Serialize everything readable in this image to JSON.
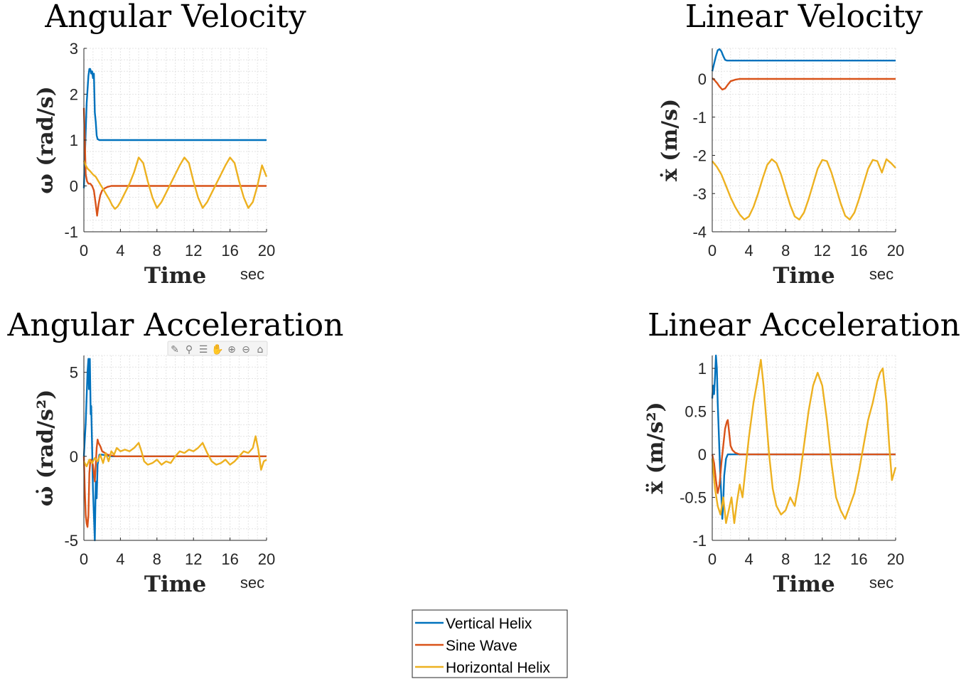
{
  "figure": {
    "colors": {
      "vertical_helix": "#0072BD",
      "sine_wave": "#D95319",
      "horizontal_helix": "#EDB120",
      "grid": "#e4e4e4",
      "axis": "#262626"
    },
    "legend": {
      "placement": "bottom-center",
      "entries": [
        "Vertical Helix",
        "Sine Wave",
        "Horizontal Helix"
      ]
    },
    "toolbar": {
      "icons": [
        "brush-icon",
        "data-tips-icon",
        "legend-icon",
        "pan-hand-icon",
        "zoom-in-icon",
        "zoom-out-icon",
        "home-icon"
      ]
    }
  },
  "chart_data": [
    {
      "type": "line",
      "title": "Angular Velocity",
      "xlabel": "Time",
      "xunit": "sec",
      "ylabel": "ω (rad/s)",
      "xlim": [
        0,
        20
      ],
      "ylim": [
        -1,
        3
      ],
      "xticks": [
        "0",
        "4",
        "8",
        "12",
        "16",
        "20"
      ],
      "yticks": [
        "-1",
        "0",
        "1",
        "2",
        "3"
      ],
      "grid": true,
      "series": [
        {
          "name": "Vertical Helix",
          "x": [
            0,
            0.1,
            0.3,
            0.5,
            0.6,
            0.7,
            0.8,
            0.9,
            1.0,
            1.1,
            1.2,
            1.3,
            1.4,
            1.5,
            1.7,
            2.0,
            20
          ],
          "y": [
            -0.05,
            0.6,
            1.8,
            2.4,
            2.55,
            2.55,
            2.45,
            2.5,
            2.35,
            2.45,
            1.6,
            1.4,
            1.1,
            1.02,
            1.0,
            1.0,
            1.0
          ]
        },
        {
          "name": "Sine Wave",
          "x": [
            0,
            0.1,
            0.2,
            0.35,
            0.5,
            0.7,
            0.9,
            1.1,
            1.3,
            1.45,
            1.6,
            1.8,
            2.0,
            2.3,
            2.6,
            3.0,
            3.5,
            4.0,
            20
          ],
          "y": [
            1.7,
            1.0,
            0.25,
            0.1,
            0.05,
            0.05,
            0.0,
            -0.1,
            -0.4,
            -0.65,
            -0.4,
            -0.2,
            -0.1,
            -0.05,
            -0.02,
            0.0,
            0.0,
            0.0,
            0.0
          ]
        },
        {
          "name": "Horizontal Helix",
          "x": [
            0,
            0.2,
            0.4,
            0.7,
            1.0,
            1.3,
            1.6,
            1.9,
            2.2,
            2.5,
            2.8,
            3.1,
            3.4,
            3.7,
            4.0,
            4.5,
            5.0,
            5.5,
            6.0,
            6.5,
            7.0,
            7.5,
            8.0,
            8.5,
            9.0,
            9.5,
            10.0,
            10.5,
            11.0,
            11.5,
            12.0,
            12.5,
            13.0,
            13.5,
            14.0,
            14.5,
            15.0,
            15.5,
            16.0,
            16.5,
            17.0,
            17.5,
            18.0,
            18.5,
            19.0,
            19.5,
            20.0
          ],
          "y": [
            0.55,
            0.45,
            0.38,
            0.32,
            0.25,
            0.2,
            0.1,
            0.0,
            -0.1,
            -0.2,
            -0.3,
            -0.42,
            -0.5,
            -0.45,
            -0.35,
            -0.15,
            0.05,
            0.3,
            0.62,
            0.5,
            0.1,
            -0.25,
            -0.48,
            -0.35,
            -0.15,
            0.05,
            0.25,
            0.45,
            0.62,
            0.5,
            0.1,
            -0.25,
            -0.48,
            -0.35,
            -0.15,
            0.05,
            0.25,
            0.45,
            0.62,
            0.5,
            0.1,
            -0.25,
            -0.48,
            -0.35,
            0.0,
            0.45,
            0.2
          ]
        }
      ]
    },
    {
      "type": "line",
      "title": "Linear Velocity",
      "xlabel": "Time",
      "xunit": "sec",
      "ylabel": "ẋ (m/s)",
      "xlim": [
        0,
        20
      ],
      "ylim": [
        -4,
        0.8
      ],
      "xticks": [
        "0",
        "4",
        "8",
        "12",
        "16",
        "20"
      ],
      "yticks": [
        "-4",
        "-3",
        "-2",
        "-1",
        "0"
      ],
      "grid": true,
      "series": [
        {
          "name": "Vertical Helix",
          "x": [
            0,
            0.2,
            0.4,
            0.6,
            0.8,
            1.0,
            1.2,
            1.4,
            1.6,
            2.0,
            20
          ],
          "y": [
            0.2,
            0.4,
            0.6,
            0.75,
            0.78,
            0.72,
            0.6,
            0.5,
            0.48,
            0.48,
            0.48
          ]
        },
        {
          "name": "Sine Wave",
          "x": [
            0,
            0.2,
            0.5,
            0.8,
            1.1,
            1.4,
            1.7,
            2.0,
            2.5,
            3.0,
            3.5,
            20
          ],
          "y": [
            0.02,
            -0.02,
            -0.1,
            -0.2,
            -0.28,
            -0.25,
            -0.15,
            -0.06,
            -0.02,
            0.0,
            0.0,
            0.0
          ]
        },
        {
          "name": "Horizontal Helix",
          "x": [
            0,
            0.5,
            1.0,
            1.5,
            2.0,
            2.5,
            3.0,
            3.5,
            4.0,
            4.5,
            5.0,
            5.5,
            6.0,
            6.5,
            7.0,
            7.5,
            8.0,
            8.5,
            9.0,
            9.5,
            10.0,
            10.5,
            11.0,
            11.5,
            12.0,
            12.5,
            13.0,
            13.5,
            14.0,
            14.5,
            15.0,
            15.5,
            16.0,
            16.5,
            17.0,
            17.5,
            18.0,
            18.5,
            19.0,
            19.5,
            20.0
          ],
          "y": [
            -2.15,
            -2.3,
            -2.5,
            -2.8,
            -3.1,
            -3.35,
            -3.55,
            -3.68,
            -3.6,
            -3.35,
            -3.0,
            -2.6,
            -2.25,
            -2.1,
            -2.2,
            -2.5,
            -2.9,
            -3.3,
            -3.6,
            -3.68,
            -3.5,
            -3.15,
            -2.75,
            -2.35,
            -2.12,
            -2.15,
            -2.45,
            -2.85,
            -3.25,
            -3.58,
            -3.68,
            -3.5,
            -3.15,
            -2.75,
            -2.35,
            -2.12,
            -2.15,
            -2.45,
            -2.1,
            -2.2,
            -2.33
          ]
        }
      ]
    },
    {
      "type": "line",
      "title": "Angular Acceleration",
      "xlabel": "Time",
      "xunit": "sec",
      "ylabel": "ω̇ (rad/s²)",
      "xlim": [
        0,
        20
      ],
      "ylim": [
        -5,
        6
      ],
      "xticks": [
        "0",
        "4",
        "8",
        "12",
        "16",
        "20"
      ],
      "yticks": [
        "-5",
        "0",
        "5"
      ],
      "grid": true,
      "series": [
        {
          "name": "Vertical Helix",
          "x": [
            0,
            0.2,
            0.4,
            0.5,
            0.55,
            0.65,
            0.75,
            0.8,
            0.9,
            1.0,
            1.1,
            1.2,
            1.3,
            1.4,
            1.5,
            1.7,
            2.0,
            3.0,
            20
          ],
          "y": [
            0.0,
            2.0,
            5.0,
            5.8,
            4.0,
            5.8,
            2.5,
            3.0,
            0.5,
            -2.0,
            -3.5,
            -5.0,
            -1.5,
            -2.5,
            -0.5,
            0.1,
            0.1,
            0.0,
            0.0
          ]
        },
        {
          "name": "Sine Wave",
          "x": [
            0,
            0.1,
            0.2,
            0.3,
            0.4,
            0.5,
            0.6,
            0.7,
            0.8,
            1.0,
            1.2,
            1.4,
            1.5,
            1.6,
            1.8,
            2.0,
            2.3,
            2.6,
            3.0,
            3.5,
            20
          ],
          "y": [
            0.0,
            -2.0,
            -3.5,
            -4.0,
            -4.2,
            -3.5,
            -1.0,
            -0.3,
            -0.2,
            -0.5,
            -1.5,
            0.5,
            1.0,
            0.8,
            0.6,
            0.3,
            0.2,
            0.1,
            0.05,
            0.0,
            0.0
          ]
        },
        {
          "name": "Horizontal Helix",
          "x": [
            0,
            0.3,
            0.6,
            0.9,
            1.2,
            1.5,
            1.8,
            2.1,
            2.4,
            2.7,
            3.0,
            3.3,
            3.6,
            4.0,
            4.5,
            5.0,
            5.5,
            6.0,
            6.3,
            6.6,
            7.0,
            7.5,
            8.0,
            8.5,
            9.0,
            9.5,
            10.0,
            10.5,
            11.0,
            11.5,
            12.0,
            12.5,
            13.0,
            13.5,
            14.0,
            14.5,
            15.0,
            15.5,
            16.0,
            16.5,
            17.0,
            17.5,
            18.0,
            18.5,
            18.8,
            19.1,
            19.4,
            19.7,
            20.0
          ],
          "y": [
            -0.3,
            -0.6,
            -0.2,
            -0.4,
            -0.1,
            -0.3,
            0.1,
            -0.4,
            0.2,
            -0.3,
            0.3,
            0.1,
            0.5,
            0.3,
            0.4,
            0.3,
            0.5,
            0.8,
            0.3,
            -0.3,
            -0.5,
            -0.4,
            -0.2,
            -0.5,
            -0.3,
            -0.4,
            0.0,
            0.3,
            0.2,
            0.4,
            0.3,
            0.5,
            0.8,
            0.2,
            -0.3,
            -0.5,
            -0.4,
            -0.2,
            -0.5,
            -0.3,
            0.0,
            0.3,
            0.2,
            0.5,
            1.2,
            0.4,
            -0.8,
            -0.3,
            -0.2
          ]
        }
      ]
    },
    {
      "type": "line",
      "title": "Linear Acceleration",
      "xlabel": "Time",
      "xunit": "sec",
      "ylabel": "ẍ (m/s²)",
      "xlim": [
        0,
        20
      ],
      "ylim": [
        -1,
        1.15
      ],
      "xticks": [
        "0",
        "4",
        "8",
        "12",
        "16",
        "20"
      ],
      "yticks": [
        "-1",
        "-0.5",
        "0",
        "0.5",
        "1"
      ],
      "grid": true,
      "series": [
        {
          "name": "Vertical Helix",
          "x": [
            0,
            0.1,
            0.2,
            0.3,
            0.4,
            0.5,
            0.6,
            0.7,
            0.8,
            0.9,
            1.0,
            1.1,
            1.2,
            1.3,
            1.5,
            1.7,
            2.0,
            3.0,
            20
          ],
          "y": [
            0.65,
            0.8,
            0.7,
            0.9,
            1.15,
            1.0,
            0.6,
            0.3,
            0.0,
            -0.3,
            -0.5,
            -0.75,
            -0.55,
            -0.25,
            -0.05,
            0.0,
            0.0,
            0.0,
            0.0
          ]
        },
        {
          "name": "Sine Wave",
          "x": [
            0,
            0.2,
            0.4,
            0.6,
            0.8,
            1.0,
            1.2,
            1.4,
            1.6,
            1.7,
            1.8,
            2.0,
            2.2,
            2.5,
            3.0,
            3.5,
            20
          ],
          "y": [
            0.0,
            -0.1,
            -0.3,
            -0.45,
            -0.35,
            -0.1,
            0.1,
            0.3,
            0.38,
            0.4,
            0.3,
            0.1,
            0.05,
            0.02,
            0.0,
            0.0,
            0.0
          ]
        },
        {
          "name": "Horizontal Helix",
          "x": [
            0,
            0.3,
            0.6,
            0.9,
            1.2,
            1.5,
            1.8,
            2.1,
            2.4,
            2.7,
            3.0,
            3.3,
            3.6,
            4.0,
            4.5,
            5.0,
            5.3,
            5.6,
            5.9,
            6.2,
            6.6,
            7.0,
            7.5,
            8.0,
            8.5,
            9.0,
            9.5,
            10.0,
            10.5,
            11.0,
            11.5,
            12.0,
            12.5,
            13.0,
            13.5,
            14.0,
            14.5,
            15.0,
            15.5,
            16.0,
            16.5,
            17.0,
            17.5,
            18.0,
            18.3,
            18.6,
            19.0,
            19.3,
            19.6,
            20.0
          ],
          "y": [
            -0.05,
            -0.4,
            -0.6,
            -0.7,
            -0.5,
            -0.8,
            -0.65,
            -0.5,
            -0.8,
            -0.55,
            -0.35,
            -0.5,
            -0.2,
            0.2,
            0.6,
            0.9,
            1.1,
            0.8,
            0.4,
            0.0,
            -0.4,
            -0.6,
            -0.7,
            -0.65,
            -0.5,
            -0.6,
            -0.3,
            0.1,
            0.5,
            0.8,
            0.95,
            0.8,
            0.4,
            -0.1,
            -0.5,
            -0.65,
            -0.75,
            -0.6,
            -0.45,
            -0.2,
            0.1,
            0.4,
            0.6,
            0.85,
            0.95,
            1.0,
            0.6,
            0.1,
            -0.3,
            -0.15
          ]
        }
      ]
    }
  ]
}
